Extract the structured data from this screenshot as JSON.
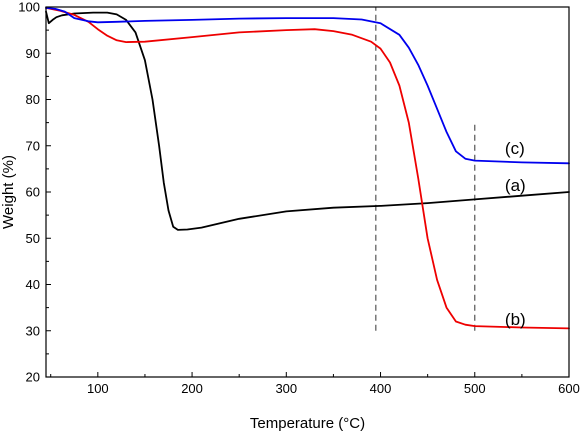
{
  "chart_data": {
    "type": "line",
    "title": "",
    "xlabel": "Temperature (°C)",
    "ylabel": "Weight (%)",
    "xlim": [
      45,
      600
    ],
    "ylim": [
      20,
      100
    ],
    "x_ticks": [
      100,
      200,
      300,
      400,
      500,
      600
    ],
    "y_ticks": [
      20,
      30,
      40,
      50,
      60,
      70,
      80,
      90,
      100
    ],
    "grid": false,
    "legend": "none",
    "series": [
      {
        "name": "(a)",
        "color": "#000000",
        "x": [
          45,
          48,
          52,
          56,
          62,
          75,
          95,
          110,
          120,
          130,
          140,
          150,
          158,
          165,
          170,
          175,
          180,
          185,
          195,
          210,
          250,
          300,
          350,
          400,
          450,
          500,
          550,
          600
        ],
        "y": [
          99,
          96.5,
          97.2,
          97.8,
          98.2,
          98.6,
          98.8,
          98.8,
          98.4,
          97.2,
          94.5,
          88.5,
          80,
          70,
          62,
          56,
          52.5,
          51.8,
          51.9,
          52.3,
          54.2,
          55.8,
          56.6,
          57,
          57.6,
          58.4,
          59.2,
          60
        ]
      },
      {
        "name": "(b)",
        "color": "#ee0000",
        "x": [
          45,
          60,
          75,
          90,
          100,
          110,
          120,
          130,
          150,
          200,
          250,
          300,
          330,
          350,
          370,
          390,
          400,
          410,
          420,
          430,
          440,
          450,
          460,
          470,
          480,
          490,
          500,
          550,
          600
        ],
        "y": [
          99.8,
          99.2,
          98.3,
          96.8,
          95.2,
          93.8,
          92.8,
          92.4,
          92.5,
          93.5,
          94.5,
          95,
          95.2,
          94.8,
          94,
          92.5,
          91,
          88,
          83,
          75,
          63,
          50,
          41,
          35,
          32,
          31.3,
          31,
          30.7,
          30.5
        ]
      },
      {
        "name": "(c)",
        "color": "#0000ee",
        "x": [
          45,
          55,
          65,
          75,
          90,
          100,
          120,
          150,
          200,
          250,
          300,
          350,
          380,
          400,
          420,
          430,
          440,
          450,
          460,
          470,
          480,
          490,
          500,
          550,
          600
        ],
        "y": [
          99.8,
          99.6,
          99,
          97.6,
          96.9,
          96.7,
          96.8,
          97,
          97.2,
          97.5,
          97.6,
          97.6,
          97.3,
          96.5,
          94,
          91.2,
          87.5,
          83,
          78,
          73,
          68.8,
          67.2,
          66.8,
          66.4,
          66.2
        ]
      }
    ],
    "annotations": [
      {
        "text": "(c)",
        "x": 532,
        "y": 69.5
      },
      {
        "text": "(a)",
        "x": 532,
        "y": 61.5
      },
      {
        "text": "(b)",
        "x": 532,
        "y": 32.5
      }
    ],
    "reference_lines": [
      {
        "x": 395,
        "y_from": 30,
        "y_to": 100,
        "style": "dashed",
        "color": "#555555"
      },
      {
        "x": 500,
        "y_from": 30,
        "y_to": 75,
        "style": "dashed",
        "color": "#555555"
      }
    ]
  }
}
